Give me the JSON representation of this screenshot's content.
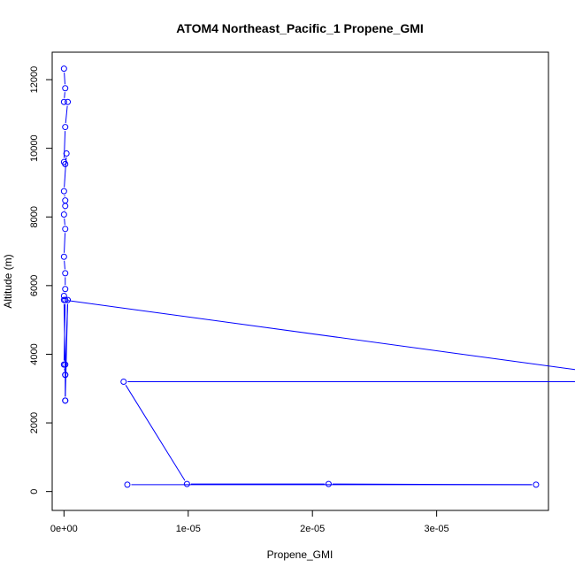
{
  "chart_data": {
    "type": "line",
    "title": "ATOM4 Northeast_Pacific_1 Propene_GMI",
    "xlabel": "Propene_GMI",
    "ylabel": "Altitude (m)",
    "xlim": [
      -9.5e-07,
      3.9e-05
    ],
    "ylim": [
      -550,
      12800
    ],
    "x_ticks": [
      0,
      1e-05,
      2e-05,
      3e-05
    ],
    "x_tick_labels": [
      "0e+00",
      "1e-05",
      "2e-05",
      "3e-05"
    ],
    "y_ticks": [
      0,
      2000,
      4000,
      6000,
      8000,
      10000,
      12000
    ],
    "y_tick_labels": [
      "0",
      "2000",
      "4000",
      "6000",
      "8000",
      "10000",
      "12000"
    ],
    "grid": false,
    "color": "#0000ff",
    "series": [
      {
        "marker": "open-circle",
        "x": [
          0,
          1e-07,
          0,
          3e-07,
          1e-07,
          0,
          1e-07,
          2e-07,
          0,
          1e-07,
          1e-07,
          0,
          1e-07,
          0,
          1e-07,
          1e-07,
          0,
          1e-07,
          0,
          1e-07,
          3e-07,
          1e-07,
          1e-07,
          1e-07,
          1e-07,
          0,
          4.83e-05,
          4.8e-06,
          9.9e-06,
          2.13e-05,
          3.8e-05,
          5.1e-06
        ],
        "y": [
          12320,
          11750,
          11350,
          11350,
          10620,
          9600,
          9540,
          9850,
          8750,
          8480,
          8320,
          8070,
          7650,
          6840,
          6360,
          5900,
          5700,
          5580,
          3700,
          3400,
          5580,
          2650,
          2650,
          3700,
          3400,
          5580,
          3200,
          3200,
          220,
          220,
          200,
          200
        ],
        "path_order": [
          0,
          1,
          2,
          3,
          4,
          5,
          6,
          7,
          8,
          9,
          10,
          11,
          12,
          13,
          14,
          15,
          16,
          17,
          18,
          19,
          20,
          21,
          22,
          23,
          24,
          25,
          26,
          27,
          28,
          29,
          30,
          31
        ]
      }
    ]
  }
}
